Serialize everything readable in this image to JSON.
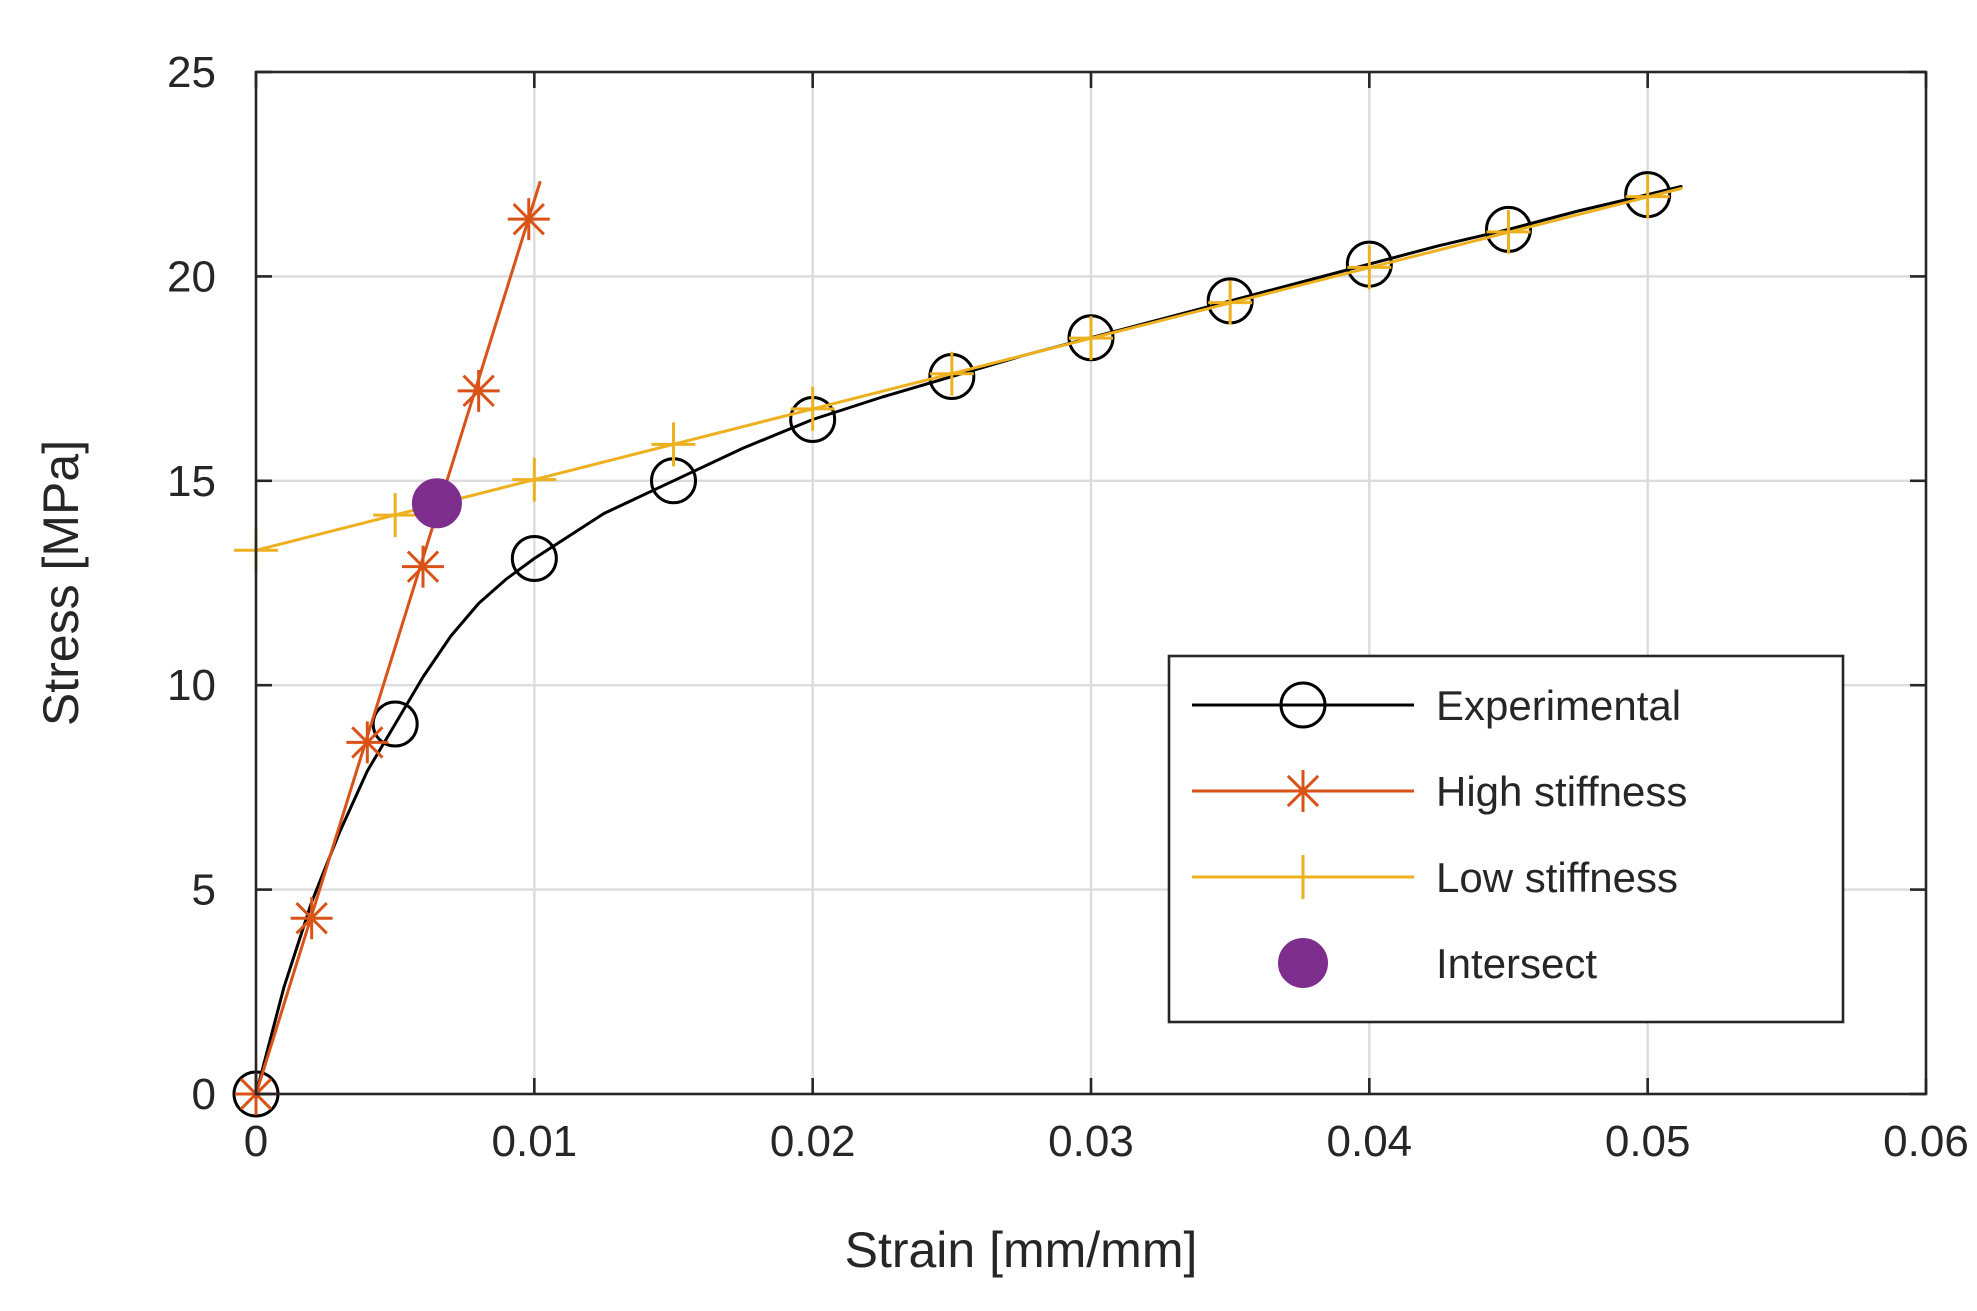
{
  "chart_data": {
    "type": "line",
    "title": "",
    "xlabel": "Strain [mm/mm]",
    "ylabel": "Stress [MPa]",
    "xlim": [
      0,
      0.06
    ],
    "ylim": [
      0,
      25
    ],
    "xticks": [
      0,
      0.01,
      0.02,
      0.03,
      0.04,
      0.05,
      0.06
    ],
    "xtick_labels": [
      "0",
      "0.01",
      "0.02",
      "0.03",
      "0.04",
      "0.05",
      "0.06"
    ],
    "yticks": [
      0,
      5,
      10,
      15,
      20,
      25
    ],
    "ytick_labels": [
      "0",
      "5",
      "10",
      "15",
      "20",
      "25"
    ],
    "grid": true,
    "legend_position": "lower-right",
    "series": [
      {
        "name": "Experimental",
        "color": "#000000",
        "marker": "circle",
        "curve_x": [
          0,
          0.001,
          0.002,
          0.003,
          0.004,
          0.005,
          0.006,
          0.007,
          0.008,
          0.009,
          0.01,
          0.0125,
          0.015,
          0.0175,
          0.02,
          0.0225,
          0.025,
          0.0275,
          0.03,
          0.0325,
          0.035,
          0.0375,
          0.04,
          0.0425,
          0.045,
          0.0475,
          0.05,
          0.0512
        ],
        "curve_y": [
          0,
          2.6,
          4.7,
          6.4,
          7.9,
          9.05,
          10.2,
          11.2,
          12.0,
          12.6,
          13.1,
          14.2,
          15.0,
          15.8,
          16.5,
          17.05,
          17.55,
          18.05,
          18.5,
          18.95,
          19.4,
          19.85,
          20.3,
          20.75,
          21.15,
          21.6,
          22.0,
          22.2
        ],
        "marker_x": [
          0,
          0.005,
          0.01,
          0.015,
          0.02,
          0.025,
          0.03,
          0.035,
          0.04,
          0.045,
          0.05
        ],
        "marker_y": [
          0,
          9.05,
          13.1,
          15.0,
          16.5,
          17.55,
          18.5,
          19.4,
          20.3,
          21.15,
          22.0
        ]
      },
      {
        "name": "High stiffness",
        "color": "#D95319",
        "marker": "asterisk",
        "curve_x": [
          0,
          0.0102
        ],
        "curve_y": [
          0,
          22.3
        ],
        "marker_x": [
          0,
          0.002,
          0.004,
          0.006,
          0.008,
          0.0098
        ],
        "marker_y": [
          0,
          4.3,
          8.6,
          12.9,
          17.2,
          21.4
        ]
      },
      {
        "name": "Low stiffness",
        "color": "#EDB120",
        "marker": "plus",
        "curve_x": [
          0,
          0.0512
        ],
        "curve_y": [
          13.3,
          22.15
        ],
        "marker_x": [
          0,
          0.005,
          0.01,
          0.015,
          0.02,
          0.025,
          0.03,
          0.035,
          0.04,
          0.045,
          0.05
        ],
        "marker_y": [
          13.3,
          14.16,
          15.03,
          15.89,
          16.76,
          17.62,
          18.49,
          19.36,
          20.22,
          21.09,
          21.95
        ]
      },
      {
        "name": "Intersect",
        "color": "#7E2F8E",
        "marker": "filled-circle",
        "curve_x": [],
        "curve_y": [],
        "marker_x": [
          0.0065
        ],
        "marker_y": [
          14.45
        ]
      }
    ]
  }
}
